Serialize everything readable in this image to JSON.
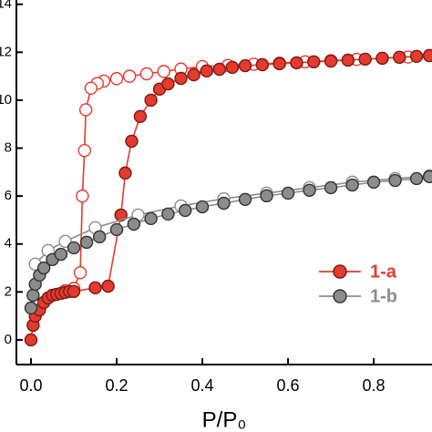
{
  "chart_data": {
    "type": "line",
    "x_label": "P/P₀",
    "xlim": [
      -0.034,
      0.936
    ],
    "ylim": [
      -1.03,
      14.18
    ],
    "xticks": [
      {
        "value": 0,
        "label": "0.0"
      },
      {
        "value": 0.2,
        "label": "0.2"
      },
      {
        "value": 0.4,
        "label": "0.4"
      },
      {
        "value": 0.6,
        "label": "0.6"
      },
      {
        "value": 0.8,
        "label": "0.8"
      }
    ],
    "yticks": [
      0,
      2,
      4,
      6,
      8,
      10,
      12,
      14
    ],
    "legend": "right",
    "series": [
      {
        "name": "1-a",
        "color": "#e53a2f",
        "x": [
          0,
          0.005,
          0.01,
          0.02,
          0.03,
          0.04,
          0.05,
          0.06,
          0.07,
          0.08,
          0.09,
          0.1,
          0.15,
          0.18,
          0.21,
          0.22,
          0.235,
          0.255,
          0.28,
          0.3,
          0.32,
          0.35,
          0.38,
          0.41,
          0.44,
          0.47,
          0.5,
          0.54,
          0.58,
          0.62,
          0.66,
          0.7,
          0.74,
          0.78,
          0.82,
          0.86,
          0.9,
          0.93
        ],
        "values": [
          0,
          0.61,
          0.99,
          1.25,
          1.56,
          1.75,
          1.86,
          1.9,
          1.94,
          1.98,
          2.02,
          2.02,
          2.17,
          2.24,
          5.21,
          6.96,
          8.29,
          9.32,
          10.0,
          10.46,
          10.68,
          10.91,
          11.06,
          11.22,
          11.29,
          11.37,
          11.44,
          11.48,
          11.52,
          11.56,
          11.6,
          11.63,
          11.67,
          11.71,
          11.75,
          11.79,
          11.83,
          11.86
        ],
        "open_x": [
          0.93,
          0.88,
          0.82,
          0.76,
          0.7,
          0.64,
          0.58,
          0.52,
          0.46,
          0.4,
          0.35,
          0.31,
          0.27,
          0.23,
          0.2,
          0.17,
          0.155,
          0.14,
          0.128,
          0.125,
          0.12,
          0.115,
          0.1,
          0.08
        ],
        "open_values": [
          11.86,
          11.8,
          11.75,
          11.7,
          11.65,
          11.6,
          11.55,
          11.5,
          11.45,
          11.4,
          11.3,
          11.2,
          11.1,
          11.0,
          10.9,
          10.8,
          10.7,
          10.5,
          9.6,
          7.9,
          6.0,
          2.8,
          2.15,
          2.05
        ]
      },
      {
        "name": "1-b",
        "color": "#8c8c8c",
        "x": [
          0,
          0.005,
          0.01,
          0.02,
          0.03,
          0.05,
          0.07,
          0.1,
          0.13,
          0.16,
          0.2,
          0.24,
          0.28,
          0.32,
          0.36,
          0.4,
          0.45,
          0.5,
          0.55,
          0.6,
          0.65,
          0.7,
          0.75,
          0.8,
          0.85,
          0.9,
          0.93
        ],
        "values": [
          1.33,
          1.86,
          2.32,
          2.7,
          3.0,
          3.35,
          3.57,
          3.84,
          4.07,
          4.3,
          4.6,
          4.83,
          5.06,
          5.25,
          5.4,
          5.55,
          5.7,
          5.86,
          6.01,
          6.12,
          6.24,
          6.35,
          6.46,
          6.58,
          6.65,
          6.73,
          6.81
        ],
        "open_x": [
          0.93,
          0.85,
          0.75,
          0.65,
          0.55,
          0.45,
          0.35,
          0.25,
          0.15,
          0.08,
          0.04,
          0.01
        ],
        "open_values": [
          6.84,
          6.73,
          6.58,
          6.35,
          6.12,
          5.89,
          5.59,
          5.21,
          4.68,
          4.11,
          3.73,
          3.16
        ]
      }
    ]
  }
}
